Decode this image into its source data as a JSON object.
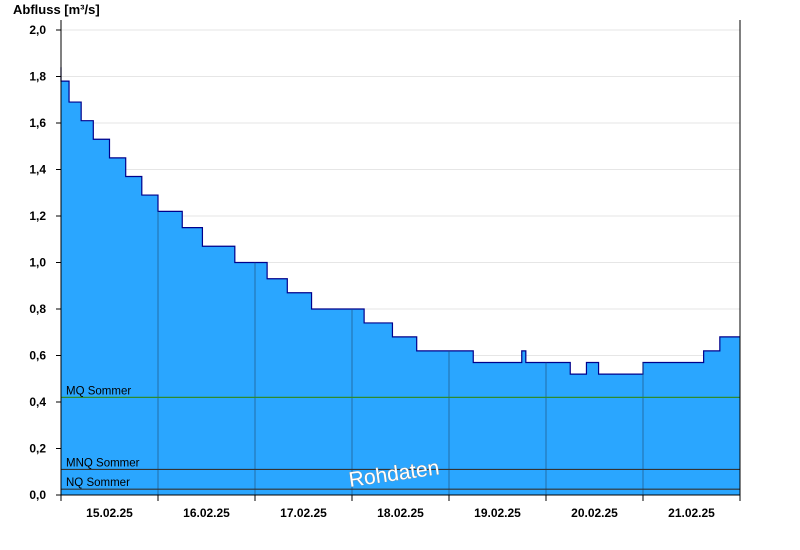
{
  "chart_data": {
    "type": "area",
    "ylabel": "Abfluss [m³/s]",
    "ylim": [
      0,
      2.0
    ],
    "yticks": [
      "0,0",
      "0,2",
      "0,4",
      "0,6",
      "0,8",
      "1,0",
      "1,2",
      "1,4",
      "1,6",
      "1,8",
      "2,0"
    ],
    "xlim": [
      0,
      7
    ],
    "xticks": [
      "15.02.25",
      "16.02.25",
      "17.02.25",
      "18.02.25",
      "19.02.25",
      "20.02.25",
      "21.02.25"
    ],
    "series": [
      {
        "x": [
          0.0,
          0.0,
          0.083,
          0.208,
          0.333,
          0.5,
          0.667,
          0.833,
          1.0,
          1.25,
          1.458,
          1.792,
          2.0,
          2.125,
          2.333,
          2.583,
          2.917,
          3.125,
          3.417,
          3.667,
          4.25,
          4.75,
          4.792,
          5.25,
          5.417,
          5.542,
          6.0,
          6.625,
          6.792,
          7.0
        ],
        "y": [
          1.84,
          1.78,
          1.69,
          1.61,
          1.53,
          1.45,
          1.37,
          1.29,
          1.22,
          1.15,
          1.07,
          1.0,
          1.0,
          0.93,
          0.87,
          0.8,
          0.8,
          0.74,
          0.68,
          0.62,
          0.57,
          0.62,
          0.57,
          0.52,
          0.57,
          0.52,
          0.57,
          0.62,
          0.68,
          0.68
        ],
        "fill": "#2aa6ff",
        "line": "#00008b"
      }
    ],
    "reference_lines": [
      {
        "label": "MQ Sommer",
        "value": 0.42,
        "color": "#2e8b2e"
      },
      {
        "label": "MNQ Sommer",
        "value": 0.11,
        "color": "#333333"
      },
      {
        "label": "NQ Sommer",
        "value": 0.025,
        "color": "#333333"
      }
    ],
    "grid": true,
    "annotation": "Rohdaten"
  }
}
